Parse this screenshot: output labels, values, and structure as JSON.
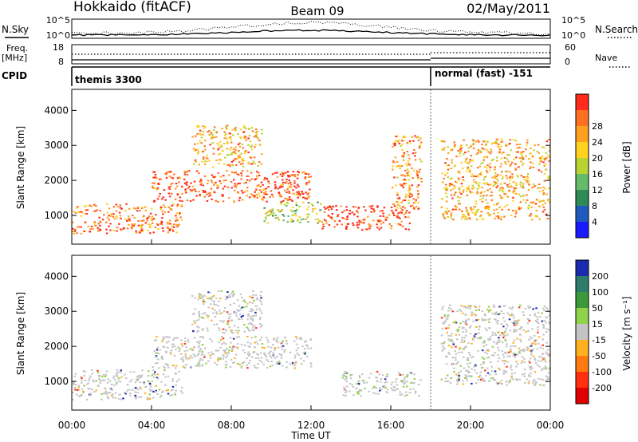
{
  "header": {
    "title_left": "Hokkaido (fitACF)",
    "title_center": "Beam 09",
    "title_right": "02/May/2011"
  },
  "top_panels": {
    "nsky_label": "N.Sky",
    "nsearch_label": "N.Search",
    "count_axis_ticks": [
      "10^5",
      "10^0"
    ],
    "freq_label_line1": "Freq.",
    "freq_label_line2": "[MHz]",
    "freq_ticks": [
      "18",
      "8"
    ],
    "nave_label": "Nave",
    "nave_ticks": [
      "60",
      "0"
    ],
    "cpid_label": "CPID",
    "cpid_segments": [
      "themis 3300",
      "normal (fast) -151"
    ]
  },
  "chart_data": [
    {
      "type": "heatmap",
      "panel": "power",
      "xlabel": "Time UT",
      "ylabel": "Slant Range [km]",
      "x_ticks": [
        "00:00",
        "04:00",
        "08:00",
        "12:00",
        "16:00",
        "20:00",
        "00:00"
      ],
      "x_range_hours": [
        0,
        24
      ],
      "y_ticks": [
        1000,
        2000,
        3000,
        4000
      ],
      "ylim_km": [
        180,
        4600
      ],
      "colorbar_label": "Power [dB]",
      "colorbar_ticks": [
        "4",
        "8",
        "12",
        "16",
        "20",
        "24",
        "28"
      ],
      "colorbar_colors": [
        "#1a1aff",
        "#1f5bbf",
        "#2e8b57",
        "#66bb6a",
        "#b7d433",
        "#ffd21f",
        "#ffa020",
        "#ff7020",
        "#ff2a1a"
      ],
      "scatter_echo_regions": [
        {
          "t": [
            0.0,
            5.5
          ],
          "r": [
            500,
            1350
          ],
          "power": 24
        },
        {
          "t": [
            4.0,
            12.0
          ],
          "r": [
            1400,
            2300
          ],
          "power": 26
        },
        {
          "t": [
            6.0,
            9.5
          ],
          "r": [
            2400,
            3600
          ],
          "power": 20
        },
        {
          "t": [
            9.5,
            12.5
          ],
          "r": [
            800,
            1400
          ],
          "power": 14
        },
        {
          "t": [
            12.5,
            17.0
          ],
          "r": [
            600,
            1300
          ],
          "power": 28
        },
        {
          "t": [
            16.0,
            17.5
          ],
          "r": [
            1200,
            3300
          ],
          "power": 22
        },
        {
          "t": [
            18.5,
            24.0
          ],
          "r": [
            900,
            3200
          ],
          "power": 20
        }
      ]
    },
    {
      "type": "heatmap",
      "panel": "velocity",
      "xlabel": "Time UT",
      "ylabel": "Slant Range [km]",
      "x_ticks": [
        "00:00",
        "04:00",
        "08:00",
        "12:00",
        "16:00",
        "20:00",
        "00:00"
      ],
      "x_range_hours": [
        0,
        24
      ],
      "y_ticks": [
        1000,
        2000,
        3000,
        4000
      ],
      "ylim_km": [
        180,
        4600
      ],
      "colorbar_label": "Velocity [m s⁻¹]",
      "colorbar_ticks": [
        "200",
        "100",
        "50",
        "15",
        "-15",
        "-50",
        "-100",
        "-200"
      ],
      "colorbar_colors": [
        "#1a2bb0",
        "#2e7d6a",
        "#3a9a3a",
        "#8fd34a",
        "#c4c4c4",
        "#ffb020",
        "#ff7a10",
        "#ff3010",
        "#e00000"
      ],
      "dominant_value_bin": "-15 to 15",
      "scatter_echo_regions": [
        {
          "t": [
            0.0,
            5.5
          ],
          "r": [
            500,
            1350
          ],
          "velocity": 0
        },
        {
          "t": [
            4.0,
            12.0
          ],
          "r": [
            1400,
            2300
          ],
          "velocity": 0
        },
        {
          "t": [
            6.0,
            9.5
          ],
          "r": [
            2400,
            3600
          ],
          "velocity": 0
        },
        {
          "t": [
            13.5,
            17.5
          ],
          "r": [
            600,
            1300
          ],
          "velocity": 40
        },
        {
          "t": [
            18.5,
            24.0
          ],
          "r": [
            900,
            3200
          ],
          "velocity": 5
        }
      ]
    }
  ],
  "colors": {
    "axis": "#000000",
    "background": "#ffffff"
  }
}
